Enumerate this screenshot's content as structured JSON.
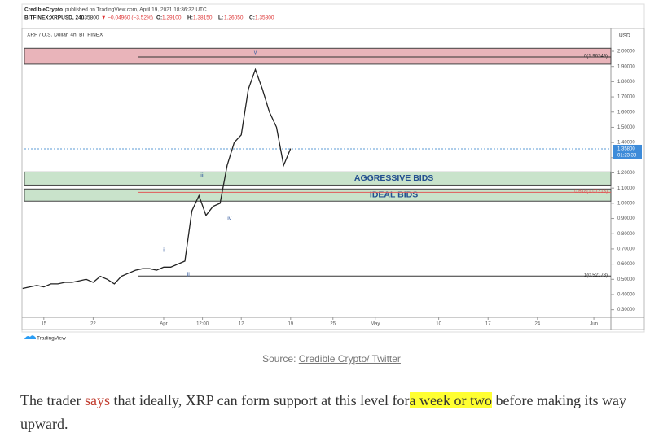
{
  "header": {
    "publisher": "CredibleCrypto",
    "published": "published on TradingView.com, April 19, 2021 18:36:32 UTC",
    "symbol": "BITFINEX:XRPUSD, 240",
    "last": "1.35800",
    "change": "▼ −0.04960 (−3.52%)",
    "ohlc": [
      {
        "label": "O:",
        "value": "1.29100"
      },
      {
        "label": "H:",
        "value": "1.38150"
      },
      {
        "label": "L:",
        "value": "1.26050"
      },
      {
        "label": "C:",
        "value": "1.35800"
      }
    ]
  },
  "chart_data": {
    "type": "line",
    "title": "XRP / U.S. Dollar, 4h, BITFINEX",
    "y_axis_label": "USD",
    "x": [
      "2021-03-12",
      "2021-03-13",
      "2021-03-14",
      "2021-03-15",
      "2021-03-16",
      "2021-03-17",
      "2021-03-18",
      "2021-03-19",
      "2021-03-20",
      "2021-03-21",
      "2021-03-22",
      "2021-03-23",
      "2021-03-24",
      "2021-03-25",
      "2021-03-26",
      "2021-03-27",
      "2021-03-28",
      "2021-03-29",
      "2021-03-30",
      "2021-03-31",
      "2021-04-01",
      "2021-04-02",
      "2021-04-03",
      "2021-04-04",
      "2021-04-05",
      "2021-04-06",
      "2021-04-07",
      "2021-04-08",
      "2021-04-09",
      "2021-04-10",
      "2021-04-11",
      "2021-04-12",
      "2021-04-13",
      "2021-04-14",
      "2021-04-15",
      "2021-04-16",
      "2021-04-17",
      "2021-04-18",
      "2021-04-19"
    ],
    "series": [
      {
        "color": "#222222",
        "values": [
          0.44,
          0.45,
          0.46,
          0.45,
          0.47,
          0.47,
          0.48,
          0.48,
          0.49,
          0.5,
          0.48,
          0.52,
          0.5,
          0.47,
          0.52,
          0.54,
          0.56,
          0.57,
          0.57,
          0.56,
          0.58,
          0.58,
          0.6,
          0.62,
          0.95,
          1.05,
          0.92,
          0.98,
          1.0,
          1.25,
          1.4,
          1.45,
          1.75,
          1.88,
          1.75,
          1.6,
          1.5,
          1.25,
          1.36
        ]
      }
    ],
    "xlim": [
      "2021-03-12T06:00Z",
      "2021-06-03T10:00Z"
    ],
    "xticks": [
      {
        "value": "2021-03-15",
        "label": "15"
      },
      {
        "value": "2021-03-22",
        "label": "22"
      },
      {
        "value": "2021-04-01",
        "label": "Apr"
      },
      {
        "value": "2021-04-06T12:00Z",
        "label": "12:00"
      },
      {
        "value": "2021-04-12",
        "label": "12"
      },
      {
        "value": "2021-04-19",
        "label": "19"
      },
      {
        "value": "2021-04-25",
        "label": "25"
      },
      {
        "value": "2021-05-01",
        "label": "May"
      },
      {
        "value": "2021-05-10",
        "label": "10"
      },
      {
        "value": "2021-05-17",
        "label": "17"
      },
      {
        "value": "2021-05-24",
        "label": "24"
      },
      {
        "value": "2021-06-01",
        "label": "Jun"
      }
    ],
    "ylim": [
      0.25,
      2.15
    ],
    "yticks": [
      {
        "value": 0.3,
        "label": "0.30000"
      },
      {
        "value": 0.4,
        "label": "0.40000"
      },
      {
        "value": 0.5,
        "label": "0.50000"
      },
      {
        "value": 0.6,
        "label": "0.60000"
      },
      {
        "value": 0.7,
        "label": "0.70000"
      },
      {
        "value": 0.8,
        "label": "0.80000"
      },
      {
        "value": 0.9,
        "label": "0.90000"
      },
      {
        "value": 1.0,
        "label": "1.00000"
      },
      {
        "value": 1.1,
        "label": "1.10000"
      },
      {
        "value": 1.2,
        "label": "1.20000"
      },
      {
        "value": 1.3,
        "label": "1.30000"
      },
      {
        "value": 1.4,
        "label": "1.40000"
      },
      {
        "value": 1.5,
        "label": "1.50000"
      },
      {
        "value": 1.6,
        "label": "1.60000"
      },
      {
        "value": 1.7,
        "label": "1.70000"
      },
      {
        "value": 1.8,
        "label": "1.80000"
      },
      {
        "value": 1.9,
        "label": "1.90000"
      },
      {
        "value": 2.0,
        "label": "2.00000"
      }
    ],
    "zones": [
      {
        "range": [
          1.915,
          2.02
        ],
        "color": "#e9b4ba"
      },
      {
        "label": "AGGRESSIVE BIDS",
        "range": [
          1.12,
          1.206
        ],
        "color": "#c9e3cb"
      },
      {
        "label": "IDEAL BIDS",
        "range": [
          1.014,
          1.094
        ],
        "color": "#c9e3cb"
      }
    ],
    "fib_levels": [
      {
        "value": 1.96249,
        "label": "0(1.96249)",
        "color": "#333333"
      },
      {
        "value": 1.07213,
        "label": "0.618(1.07213)",
        "color": "#e05a5a"
      },
      {
        "value": 0.52178,
        "label": "1(0.52178)",
        "color": "#333333"
      }
    ],
    "wave_labels": [
      {
        "text": "v",
        "x": "2021-04-14",
        "y": 1.99
      },
      {
        "text": "iii",
        "x": "2021-04-06T12:00Z",
        "y": 1.18
      },
      {
        "text": "iv",
        "x": "2021-04-10T08:00Z",
        "y": 0.9
      },
      {
        "text": "i",
        "x": "2021-04-01",
        "y": 0.69
      },
      {
        "text": "ii",
        "x": "2021-04-04T12:00Z",
        "y": 0.53
      }
    ],
    "last_price": {
      "value": 1.358,
      "label": "1.35800"
    },
    "countdown": "01:23:33"
  },
  "logo": "TradingView",
  "caption": {
    "prefix": "Source:",
    "link": "Credible Crypto/ Twitter"
  },
  "paragraph": [
    "The trader ",
    "says",
    " that ideally, XRP can form support at this level for",
    "a week or two",
    " before making its way upward."
  ]
}
